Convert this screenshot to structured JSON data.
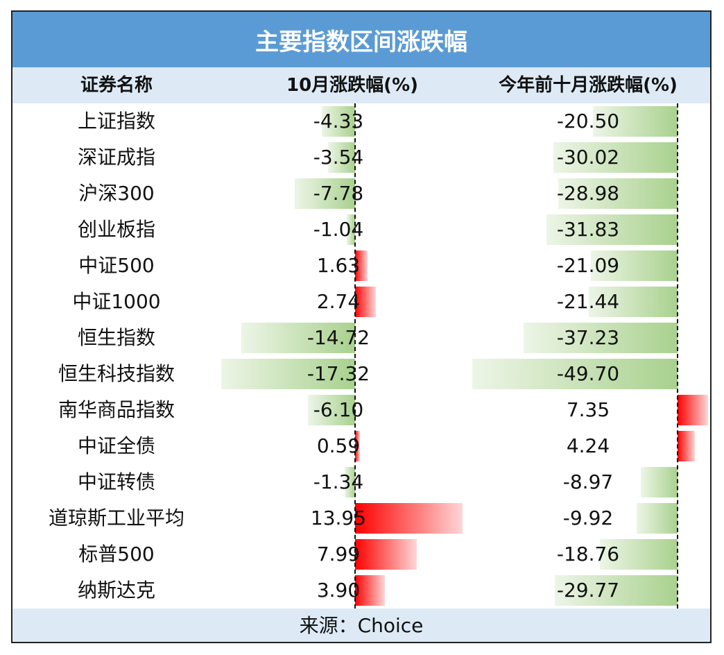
{
  "title": "主要指数区间涨跌幅",
  "headers": {
    "name": "证券名称",
    "oct": "10月涨跌幅(%)",
    "ytd": "今年前十月涨跌幅(%)"
  },
  "footer": "来源：Choice",
  "colors": {
    "title_bg": "#5b9bd5",
    "header_bg": "#ddeaf6",
    "negative": "#a9d18e",
    "positive": "#ff0000"
  },
  "chart_data": {
    "type": "table",
    "title": "主要指数区间涨跌幅",
    "columns": [
      "证券名称",
      "10月涨跌幅(%)",
      "今年前十月涨跌幅(%)"
    ],
    "rows": [
      {
        "name": "上证指数",
        "oct": "-4.33",
        "ytd": "-20.50"
      },
      {
        "name": "深证成指",
        "oct": "-3.54",
        "ytd": "-30.02"
      },
      {
        "name": "沪深300",
        "oct": "-7.78",
        "ytd": "-28.98"
      },
      {
        "name": "创业板指",
        "oct": "-1.04",
        "ytd": "-31.83"
      },
      {
        "name": "中证500",
        "oct": "1.63",
        "ytd": "-21.09"
      },
      {
        "name": "中证1000",
        "oct": "2.74",
        "ytd": "-21.44"
      },
      {
        "name": "恒生指数",
        "oct": "-14.72",
        "ytd": "-37.23"
      },
      {
        "name": "恒生科技指数",
        "oct": "-17.32",
        "ytd": "-49.70"
      },
      {
        "name": "南华商品指数",
        "oct": "-6.10",
        "ytd": "7.35"
      },
      {
        "name": "中证全债",
        "oct": "0.59",
        "ytd": "4.24"
      },
      {
        "name": "中证转债",
        "oct": "-1.34",
        "ytd": "-8.97"
      },
      {
        "name": "道琼斯工业平均",
        "oct": "13.95",
        "ytd": "-9.92"
      },
      {
        "name": "标普500",
        "oct": "7.99",
        "ytd": "-18.76"
      },
      {
        "name": "纳斯达克",
        "oct": "3.90",
        "ytd": "-29.77"
      }
    ]
  }
}
